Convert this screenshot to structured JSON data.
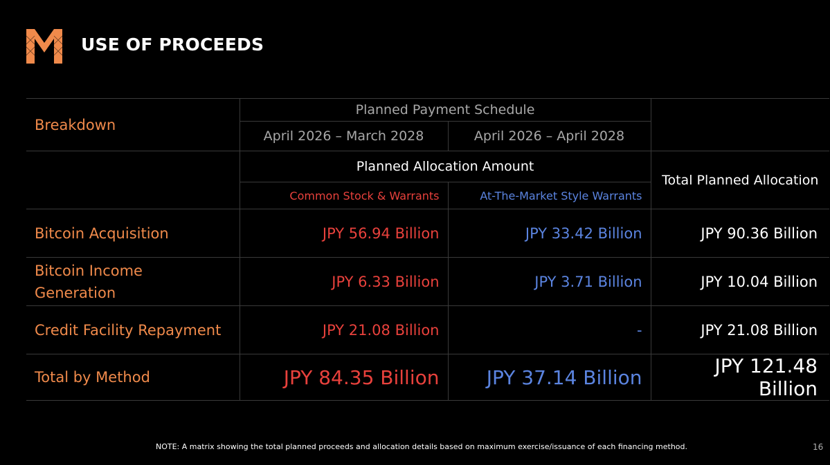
{
  "header": {
    "title": "USE OF PROCEEDS",
    "logo_icon": "m-logo-icon"
  },
  "colors": {
    "orange": "#f08a4b",
    "red": "#e8413c",
    "blue": "#5b84e0"
  },
  "table": {
    "breakdown_label": "Breakdown",
    "schedule_label": "Planned Payment Schedule",
    "period_1": "April 2026 – March 2028",
    "period_2": "April 2026 – April 2028",
    "allocation_label": "Planned Allocation Amount",
    "total_allocation_label": "Total Planned Allocation",
    "method_1": "Common Stock & Warrants",
    "method_2": "At-The-Market Style Warrants",
    "rows": [
      {
        "label": "Bitcoin Acquisition",
        "m1": "JPY 56.94 Billion",
        "m2": "JPY 33.42 Billion",
        "total": "JPY 90.36 Billion"
      },
      {
        "label_line1": "Bitcoin Income",
        "label_line2": "Generation",
        "m1": "JPY 6.33 Billion",
        "m2": "JPY 3.71 Billion",
        "total": "JPY 10.04 Billion"
      },
      {
        "label": "Credit Facility Repayment",
        "m1": "JPY 21.08 Billion",
        "m2": "-",
        "total": "JPY 21.08 Billion"
      }
    ],
    "total_row": {
      "label": "Total by Method",
      "m1": "JPY 84.35 Billion",
      "m2": "JPY 37.14 Billion",
      "total": "JPY 121.48 Billion"
    }
  },
  "footer": {
    "note": "NOTE: A matrix showing the total planned proceeds and allocation details based on maximum exercise/issuance of each financing method.",
    "page_number": "16"
  }
}
